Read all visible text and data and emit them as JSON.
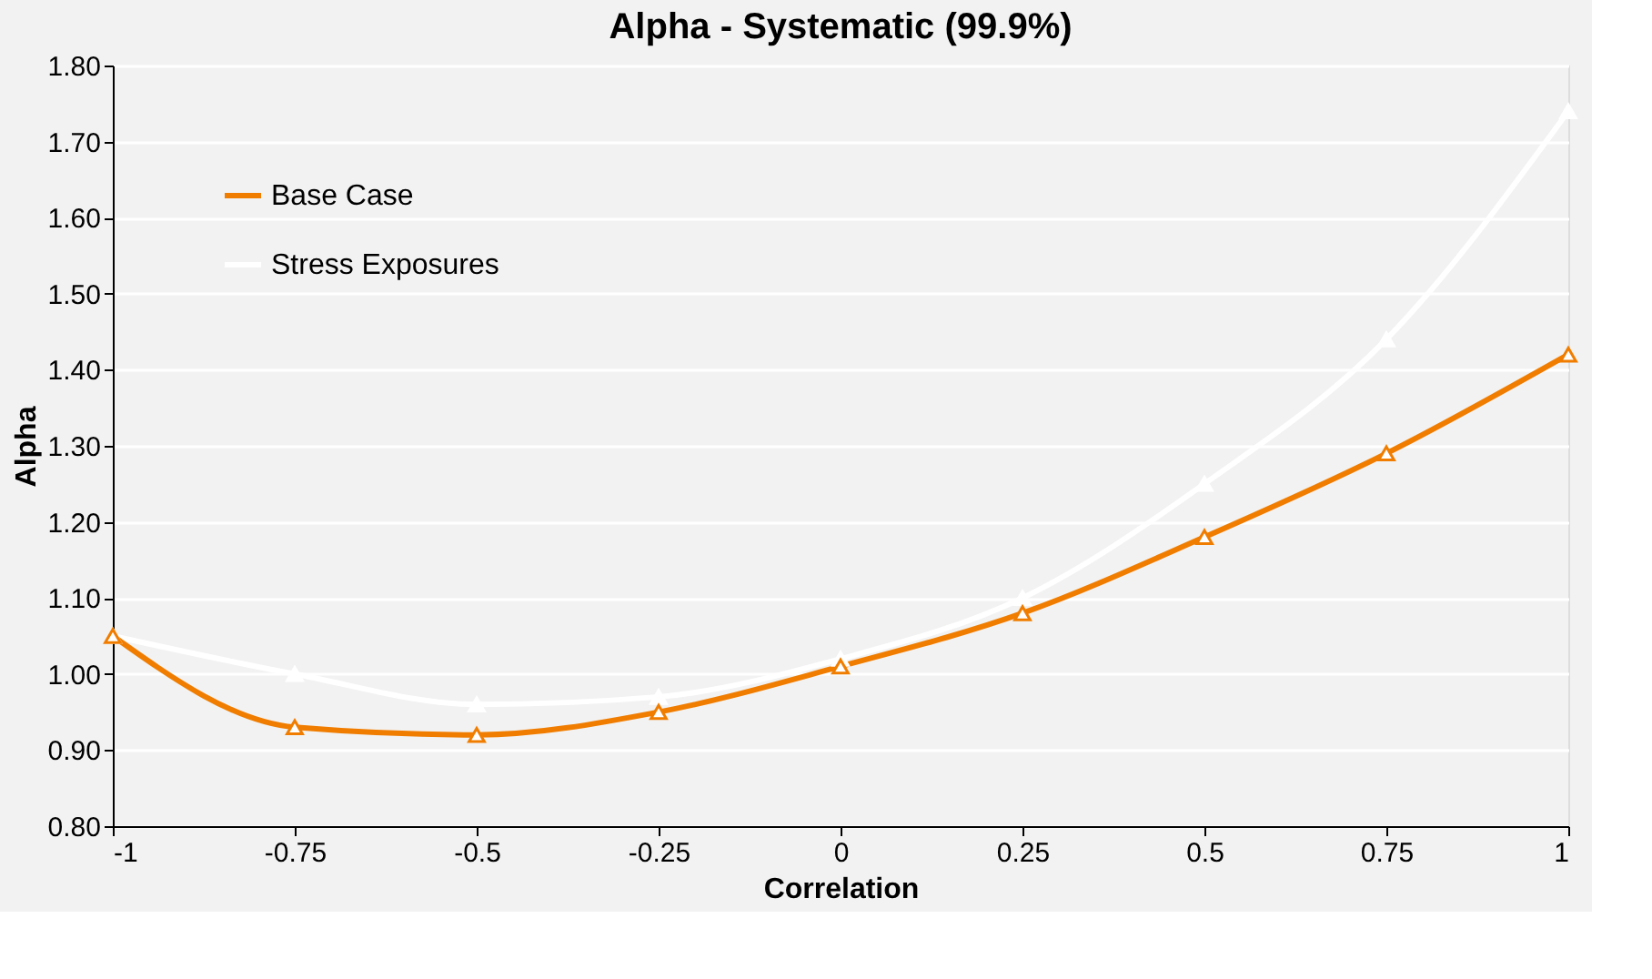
{
  "chart_data": {
    "type": "line",
    "title": "Alpha - Systematic (99.9%)",
    "xlabel": "Correlation",
    "ylabel": "Alpha",
    "x": [
      -1,
      -0.75,
      -0.5,
      -0.25,
      0,
      0.25,
      0.5,
      0.75,
      1
    ],
    "series": [
      {
        "name": "Base Case",
        "color": "#f07d00",
        "values": [
          1.05,
          0.93,
          0.92,
          0.95,
          1.01,
          1.08,
          1.18,
          1.29,
          1.42
        ]
      },
      {
        "name": "Stress Exposures",
        "color": "#ffffff",
        "values": [
          1.05,
          1.0,
          0.96,
          0.97,
          1.02,
          1.1,
          1.25,
          1.44,
          1.74
        ]
      }
    ],
    "xlim": [
      -1,
      1
    ],
    "xticks": [
      -1,
      {
        "value": -0.75,
        "label": "-0.75"
      },
      {
        "value": -0.5,
        "label": "-0.5"
      },
      {
        "value": -0.25,
        "label": "-0.25"
      },
      0,
      0.25,
      0.5,
      0.75,
      1
    ],
    "ylim": [
      0.8,
      1.8
    ],
    "yticks": [
      {
        "value": 0.8,
        "label": "0.80"
      },
      {
        "value": 0.9,
        "label": "0.90"
      },
      {
        "value": 1.0,
        "label": "1.00"
      },
      {
        "value": 1.1,
        "label": "1.10"
      },
      {
        "value": 1.2,
        "label": "1.20"
      },
      {
        "value": 1.3,
        "label": "1.30"
      },
      {
        "value": 1.4,
        "label": "1.40"
      },
      {
        "value": 1.5,
        "label": "1.50"
      },
      {
        "value": 1.6,
        "label": "1.60"
      },
      {
        "value": 1.7,
        "label": "1.70"
      },
      {
        "value": 1.8,
        "label": "1.80"
      }
    ],
    "grid": "y",
    "legend": "top left",
    "marker": "triangle",
    "line_style": "solid"
  }
}
